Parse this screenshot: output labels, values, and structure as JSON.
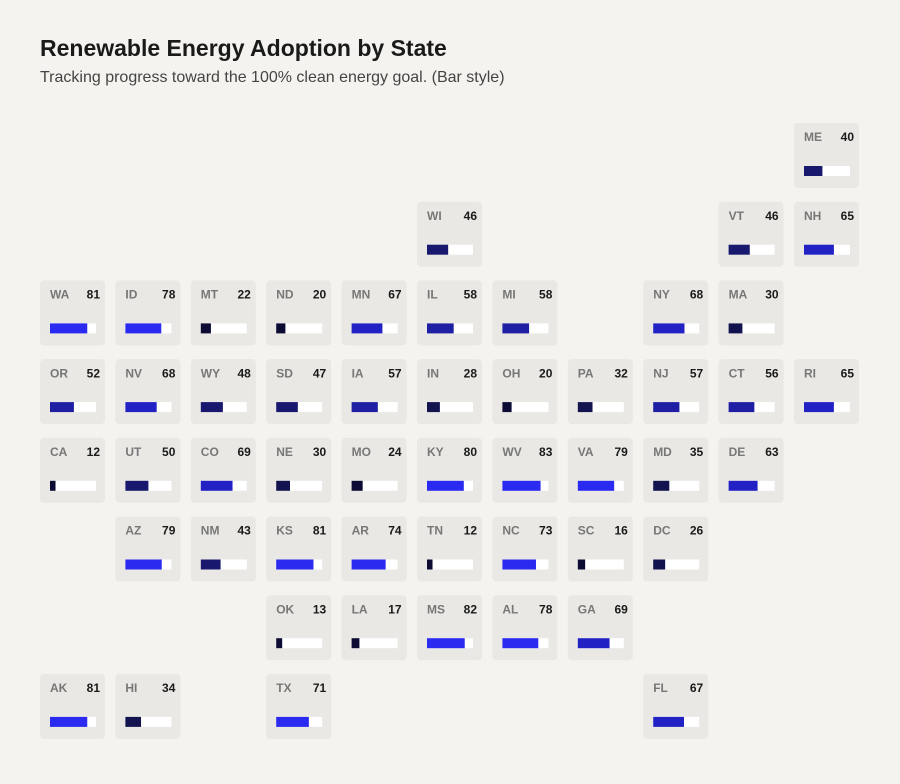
{
  "title": "Renewable Energy Adoption by State",
  "subtitle": "Tracking progress toward the 100% clean energy goal. (Bar style)",
  "xlim": [
    0,
    100
  ],
  "tiles": [
    {
      "state": "ME",
      "value": 40,
      "color": "#18186e"
    },
    {
      "state": "WI",
      "value": 46,
      "color": "#18186e"
    },
    {
      "state": "VT",
      "value": 46,
      "color": "#18186e"
    },
    {
      "state": "NH",
      "value": 65,
      "color": "#2222c4"
    },
    {
      "state": "WA",
      "value": 81,
      "color": "#2a2af0"
    },
    {
      "state": "ID",
      "value": 78,
      "color": "#2a2af0"
    },
    {
      "state": "MT",
      "value": 22,
      "color": "#0b0b33"
    },
    {
      "state": "ND",
      "value": 20,
      "color": "#0b0b33"
    },
    {
      "state": "MN",
      "value": 67,
      "color": "#2222c4"
    },
    {
      "state": "IL",
      "value": 58,
      "color": "#1f1fa3"
    },
    {
      "state": "MI",
      "value": 58,
      "color": "#1f1fa3"
    },
    {
      "state": "NY",
      "value": 68,
      "color": "#2222c4"
    },
    {
      "state": "MA",
      "value": 30,
      "color": "#13134f"
    },
    {
      "state": "OR",
      "value": 52,
      "color": "#1f1fa3"
    },
    {
      "state": "NV",
      "value": 68,
      "color": "#2222c4"
    },
    {
      "state": "WY",
      "value": 48,
      "color": "#18186e"
    },
    {
      "state": "SD",
      "value": 47,
      "color": "#18186e"
    },
    {
      "state": "IA",
      "value": 57,
      "color": "#1f1fa3"
    },
    {
      "state": "IN",
      "value": 28,
      "color": "#13134f"
    },
    {
      "state": "OH",
      "value": 20,
      "color": "#0b0b33"
    },
    {
      "state": "PA",
      "value": 32,
      "color": "#13134f"
    },
    {
      "state": "NJ",
      "value": 57,
      "color": "#1f1fa3"
    },
    {
      "state": "CT",
      "value": 56,
      "color": "#1f1fa3"
    },
    {
      "state": "RI",
      "value": 65,
      "color": "#2222c4"
    },
    {
      "state": "CA",
      "value": 12,
      "color": "#0b0b33"
    },
    {
      "state": "UT",
      "value": 50,
      "color": "#18186e"
    },
    {
      "state": "CO",
      "value": 69,
      "color": "#2222c4"
    },
    {
      "state": "NE",
      "value": 30,
      "color": "#13134f"
    },
    {
      "state": "MO",
      "value": 24,
      "color": "#0b0b33"
    },
    {
      "state": "KY",
      "value": 80,
      "color": "#2a2af0"
    },
    {
      "state": "WV",
      "value": 83,
      "color": "#2a2af0"
    },
    {
      "state": "VA",
      "value": 79,
      "color": "#2a2af0"
    },
    {
      "state": "MD",
      "value": 35,
      "color": "#13134f"
    },
    {
      "state": "DE",
      "value": 63,
      "color": "#2222c4"
    },
    {
      "state": "AZ",
      "value": 79,
      "color": "#2a2af0"
    },
    {
      "state": "NM",
      "value": 43,
      "color": "#18186e"
    },
    {
      "state": "KS",
      "value": 81,
      "color": "#2a2af0"
    },
    {
      "state": "AR",
      "value": 74,
      "color": "#2a2af0"
    },
    {
      "state": "TN",
      "value": 12,
      "color": "#0b0b33"
    },
    {
      "state": "NC",
      "value": 73,
      "color": "#2a2af0"
    },
    {
      "state": "SC",
      "value": 16,
      "color": "#0b0b33"
    },
    {
      "state": "DC",
      "value": 26,
      "color": "#13134f"
    },
    {
      "state": "OK",
      "value": 13,
      "color": "#0b0b33"
    },
    {
      "state": "LA",
      "value": 17,
      "color": "#0b0b33"
    },
    {
      "state": "MS",
      "value": 82,
      "color": "#2a2af0"
    },
    {
      "state": "AL",
      "value": 78,
      "color": "#2a2af0"
    },
    {
      "state": "GA",
      "value": 69,
      "color": "#2222c4"
    },
    {
      "state": "AK",
      "value": 81,
      "color": "#2a2af0"
    },
    {
      "state": "HI",
      "value": 34,
      "color": "#13134f"
    },
    {
      "state": "TX",
      "value": 71,
      "color": "#2a2af0"
    },
    {
      "state": "FL",
      "value": 67,
      "color": "#2222c4"
    }
  ]
}
